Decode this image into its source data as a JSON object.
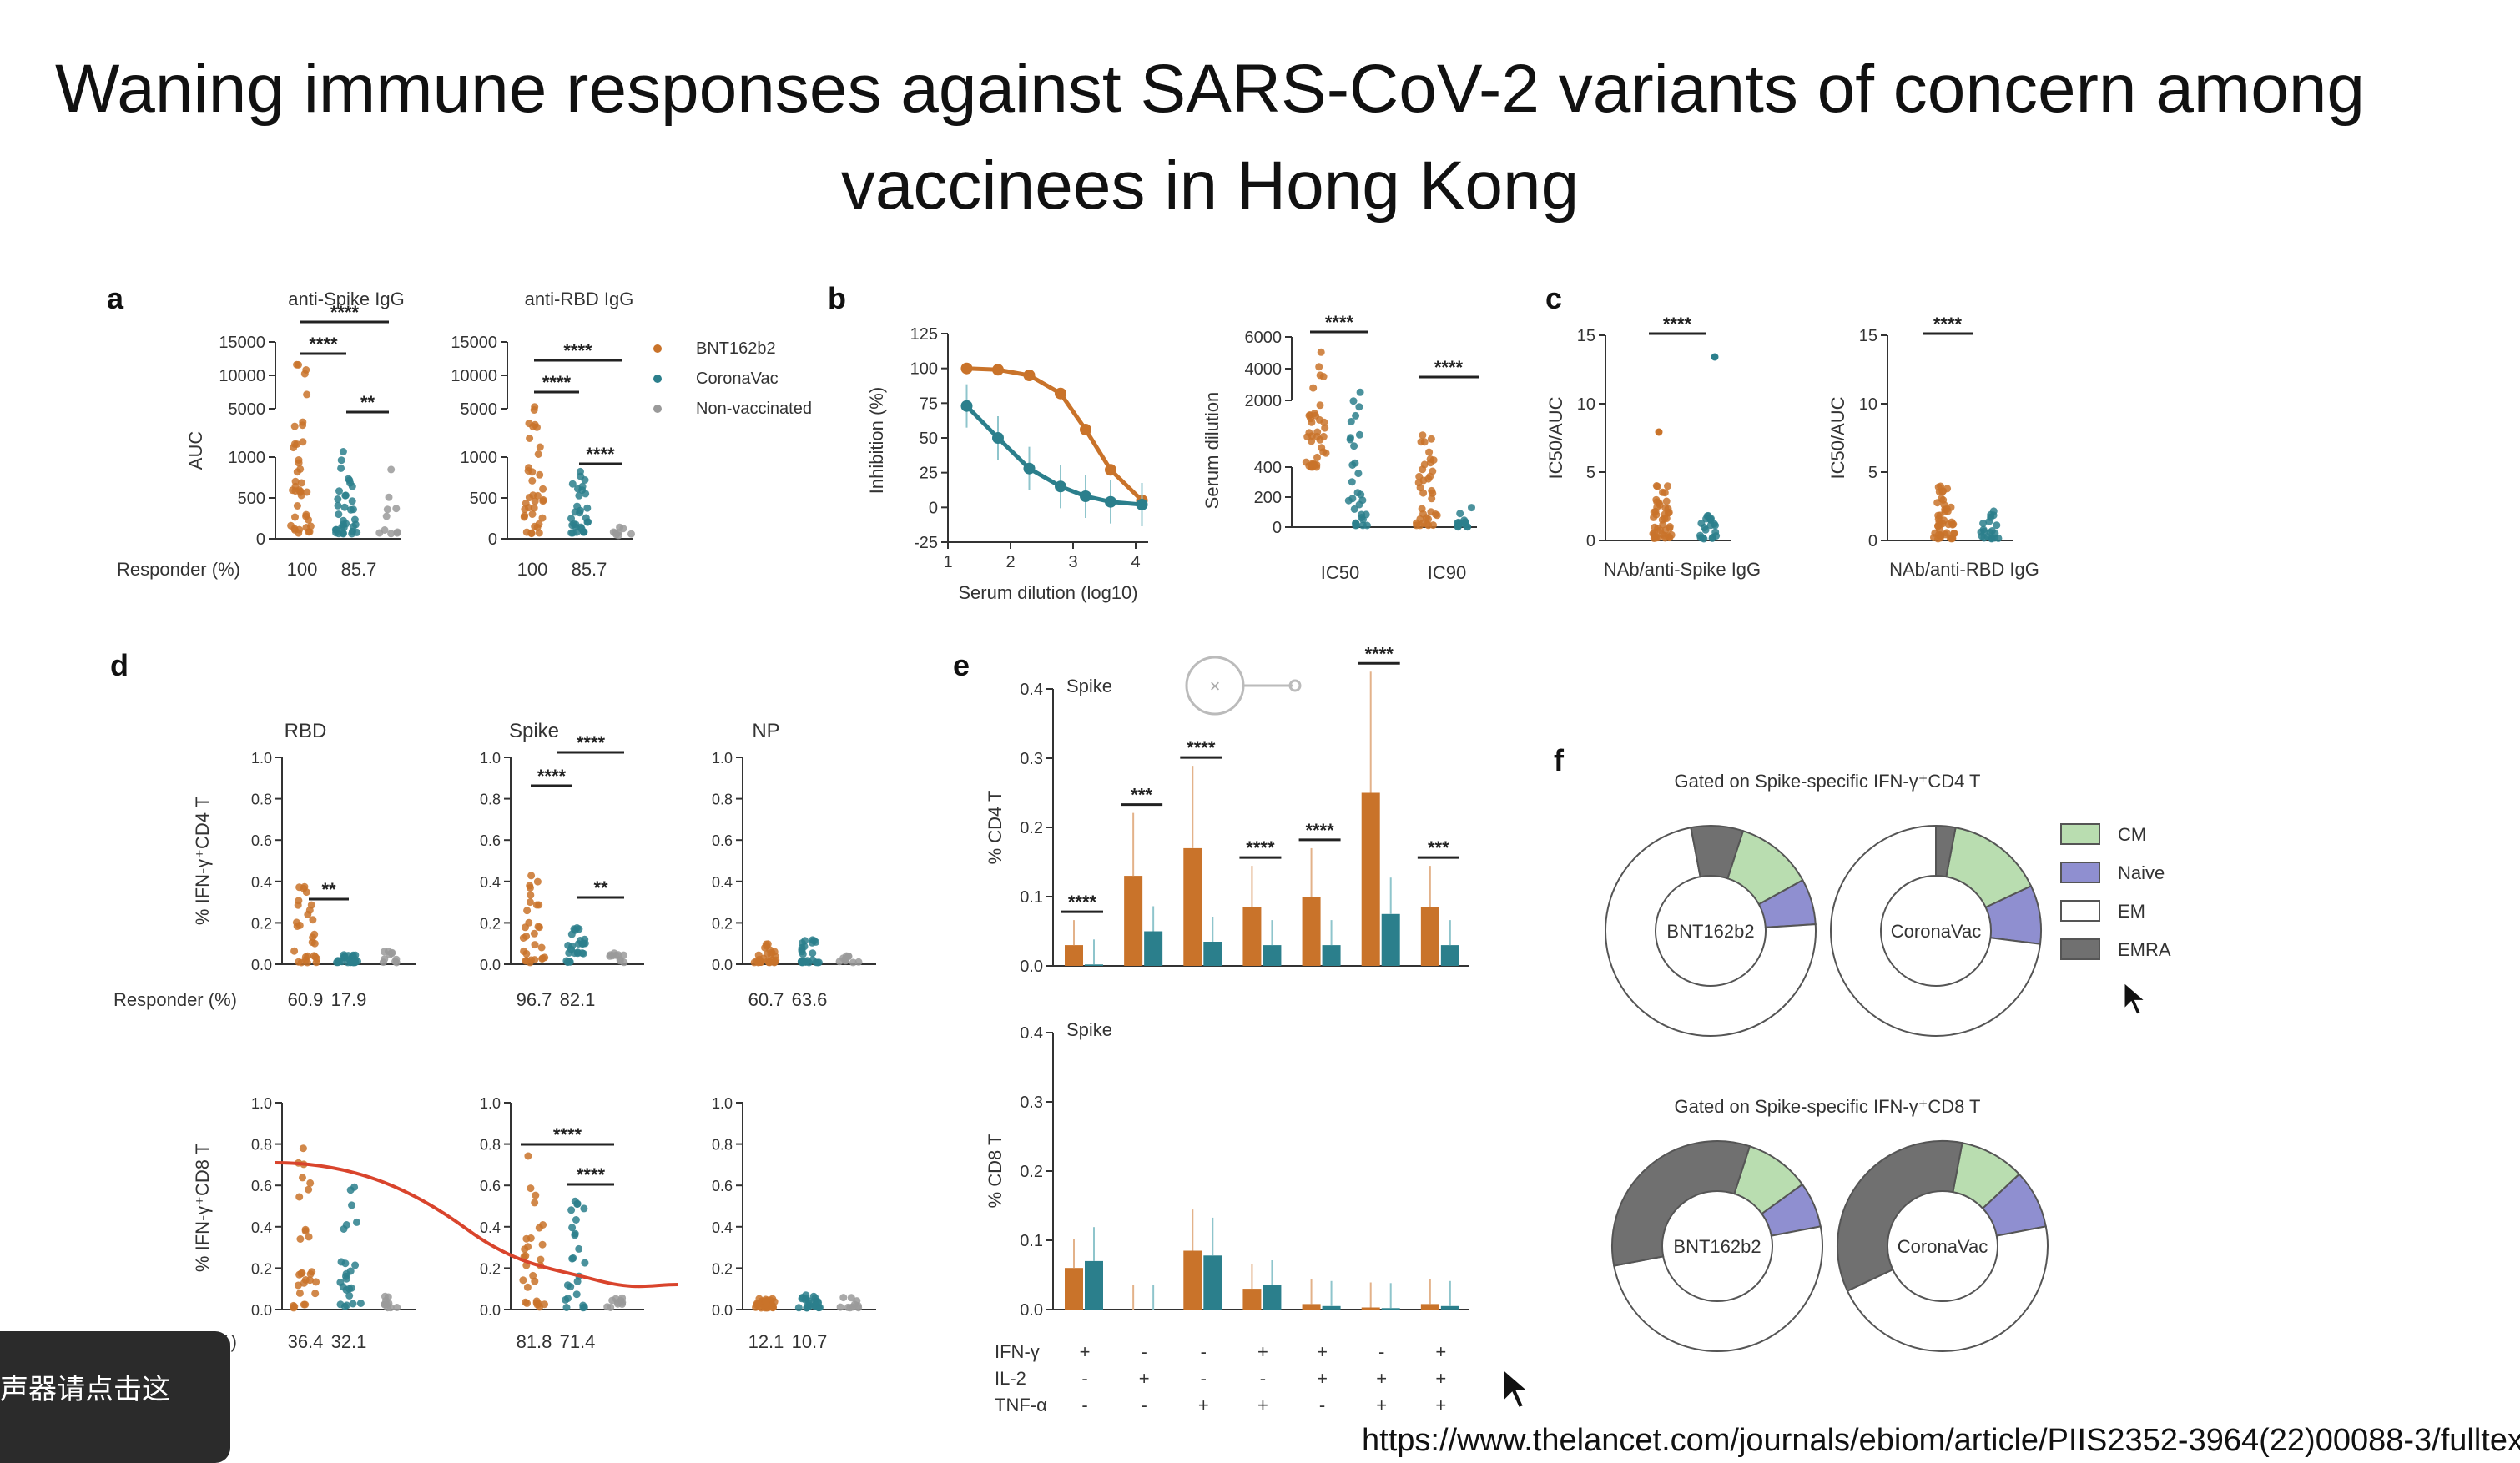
{
  "slide": {
    "title_line1": "Waning immune responses against SARS-CoV-2 variants of concern among",
    "title_line2": "vaccinees in Hong Kong",
    "url": "https://www.thelancet.com/journals/ebiom/article/PIIS2352-3964(22)00088-3/fulltext",
    "toast_text": "声器请点击这"
  },
  "colors": {
    "bnt": "#c9732a",
    "corona": "#2b7f8c",
    "nonvac": "#9a9a9a",
    "cm": "#b9ddb0",
    "naive": "#8f8fd0",
    "em": "#ffffff",
    "emra": "#707070",
    "overlay_line": "#d9442c"
  },
  "panels": {
    "a": {
      "letter": "a",
      "title_spike": "anti-Spike IgG",
      "title_rbd": "anti-RBD IgG",
      "ylabel": "AUC",
      "yticks_upper": [
        "15000",
        "10000",
        "5000"
      ],
      "yticks_lower": [
        "1000",
        "500",
        "0"
      ],
      "legend": [
        "BNT162b2",
        "CoronaVac",
        "Non-vaccinated"
      ],
      "responder_label": "Responder (%)",
      "responder_spike": [
        "100",
        "85.7"
      ],
      "responder_rbd": [
        "100",
        "85.7"
      ],
      "sig_spike": [
        "****",
        "****",
        "**"
      ],
      "sig_rbd": [
        "****",
        "****",
        "****"
      ]
    },
    "b": {
      "letter": "b",
      "ylabel": "Inhibition (%)",
      "xlabel": "Serum dilution (log10)",
      "yticks": [
        "125",
        "100",
        "75",
        "50",
        "25",
        "0",
        "-25"
      ],
      "xticks": [
        "1",
        "2",
        "3",
        "4"
      ],
      "dil_ylabel": "Serum dilution",
      "dil_yticks_upper": [
        "6000",
        "4000",
        "2000"
      ],
      "dil_yticks_lower": [
        "400",
        "200",
        "0"
      ],
      "dil_xticks": [
        "IC50",
        "IC90"
      ],
      "sig": [
        "****",
        "****"
      ]
    },
    "c": {
      "letter": "c",
      "ylabel": "IC50/AUC",
      "yticks": [
        "15",
        "10",
        "5",
        "0"
      ],
      "xlabel_spike": "NAb/anti-Spike IgG",
      "xlabel_rbd": "NAb/anti-RBD IgG",
      "sig": [
        "****",
        "****"
      ]
    },
    "d": {
      "letter": "d",
      "titles": [
        "RBD",
        "Spike",
        "NP"
      ],
      "ylabel_cd4": "% IFN-γ⁺CD4 T",
      "ylabel_cd8": "% IFN-γ⁺CD8 T",
      "yticks": [
        "1.0",
        "0.8",
        "0.6",
        "0.4",
        "0.2",
        "0.0"
      ],
      "responder_label": "Responder (%)",
      "responder_label_cd8": "Responder (%)",
      "cd4_responders": [
        [
          "60.9",
          "17.9"
        ],
        [
          "96.7",
          "82.1"
        ],
        [
          "60.7",
          "63.6"
        ]
      ],
      "cd8_responders": [
        [
          "36.4",
          "32.1"
        ],
        [
          "81.8",
          "71.4"
        ],
        [
          "12.1",
          "10.7"
        ]
      ],
      "cd4_sig": [
        "**",
        "****",
        "****",
        "**"
      ],
      "cd8_sig": [
        "****",
        "****"
      ]
    },
    "e": {
      "letter": "e",
      "top_title": "Spike",
      "bottom_title": "Spike",
      "ylabel_cd4": "% CD4 T",
      "ylabel_cd8": "% CD8 T",
      "yticks": [
        "0.4",
        "0.3",
        "0.2",
        "0.1",
        "0.0"
      ],
      "row_labels": [
        "IFN-γ",
        "IL-2",
        "TNF-α"
      ],
      "ifng": [
        "+",
        "-",
        "-",
        "+",
        "+",
        "-",
        "+"
      ],
      "il2": [
        "-",
        "+",
        "-",
        "-",
        "+",
        "+",
        "+"
      ],
      "tnfa": [
        "-",
        "-",
        "+",
        "+",
        "-",
        "+",
        "+"
      ],
      "cd4_sig": [
        "****",
        "***",
        "****",
        "****",
        "****",
        "****",
        "***"
      ]
    },
    "f": {
      "letter": "f",
      "title_cd4": "Gated on Spike-specific IFN-γ⁺CD4 T",
      "title_cd8": "Gated on Spike-specific IFN-γ⁺CD8 T",
      "donut_labels": [
        "BNT162b2",
        "CoronaVac",
        "BNT162b2",
        "CoronaVac"
      ],
      "legend": [
        "CM",
        "Naive",
        "EM",
        "EMRA"
      ]
    }
  },
  "chart_data": [
    {
      "type": "line",
      "panel": "b",
      "xlabel": "Serum dilution (log10)",
      "ylabel": "Inhibition (%)",
      "xlim": [
        1,
        4.2
      ],
      "ylim": [
        -25,
        125
      ],
      "series": [
        {
          "name": "BNT162b2",
          "x": [
            1.3,
            1.8,
            2.3,
            2.8,
            3.2,
            3.6,
            4.1
          ],
          "y": [
            100,
            99,
            95,
            82,
            56,
            27,
            5
          ]
        },
        {
          "name": "CoronaVac",
          "x": [
            1.3,
            1.8,
            2.3,
            2.8,
            3.2,
            3.6,
            4.1
          ],
          "y": [
            73,
            50,
            28,
            15,
            8,
            4,
            2
          ]
        }
      ]
    },
    {
      "type": "bar",
      "panel": "e-CD4",
      "ylabel": "% CD4 T",
      "ylim": [
        0,
        0.4
      ],
      "categories": [
        "IFN-γ+",
        "IL-2+",
        "TNF-α+",
        "IFN-γ+TNF-α+",
        "IFN-γ+IL-2+",
        "IL-2+TNF-α+",
        "IFN-γ+IL-2+TNF-α+"
      ],
      "series": [
        {
          "name": "BNT162b2",
          "values": [
            0.03,
            0.13,
            0.17,
            0.085,
            0.1,
            0.25,
            0.085
          ]
        },
        {
          "name": "CoronaVac",
          "values": [
            0.002,
            0.05,
            0.035,
            0.03,
            0.03,
            0.075,
            0.03
          ]
        }
      ]
    },
    {
      "type": "bar",
      "panel": "e-CD8",
      "ylabel": "% CD8 T",
      "ylim": [
        0,
        0.4
      ],
      "categories": [
        "IFN-γ+",
        "IL-2+",
        "TNF-α+",
        "IFN-γ+TNF-α+",
        "IFN-γ+IL-2+",
        "IL-2+TNF-α+",
        "IFN-γ+IL-2+TNF-α+"
      ],
      "series": [
        {
          "name": "BNT162b2",
          "values": [
            0.06,
            0.0,
            0.085,
            0.03,
            0.008,
            0.003,
            0.008
          ]
        },
        {
          "name": "CoronaVac",
          "values": [
            0.07,
            0.0,
            0.078,
            0.035,
            0.005,
            0.002,
            0.005
          ]
        }
      ]
    },
    {
      "type": "pie",
      "panel": "f",
      "categories": [
        "CM",
        "Naive",
        "EM",
        "EMRA"
      ],
      "donuts": [
        {
          "label": "BNT162b2",
          "group": "CD4",
          "values": [
            0.12,
            0.07,
            0.73,
            0.08
          ]
        },
        {
          "label": "CoronaVac",
          "group": "CD4",
          "values": [
            0.15,
            0.09,
            0.73,
            0.03
          ]
        },
        {
          "label": "BNT162b2",
          "group": "CD8",
          "values": [
            0.1,
            0.07,
            0.5,
            0.33
          ]
        },
        {
          "label": "CoronaVac",
          "group": "CD8",
          "values": [
            0.1,
            0.09,
            0.46,
            0.35
          ]
        }
      ]
    }
  ]
}
